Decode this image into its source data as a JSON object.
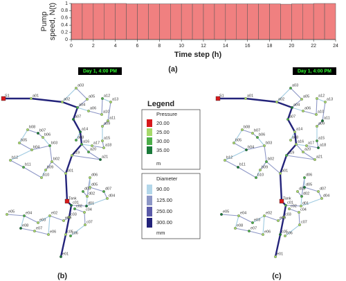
{
  "chart_data": {
    "type": "histogram",
    "ylabel": "Pump speed, N(t)",
    "xlabel": "Time step (h)",
    "caption": "(a)",
    "bins": [
      0,
      1,
      2,
      3,
      4,
      5,
      6,
      7,
      8,
      9,
      10,
      11,
      12,
      13,
      14,
      15,
      16,
      17,
      18,
      19,
      20,
      21,
      22,
      23,
      24
    ],
    "values": [
      1,
      1,
      1,
      1,
      1,
      0.99,
      0.99,
      0.99,
      0.99,
      0.99,
      0.99,
      0.99,
      0.99,
      0.99,
      0.99,
      0.99,
      0.99,
      0.99,
      0.99,
      0.98,
      0.99,
      0.99,
      1,
      1
    ],
    "color": "#f08080",
    "xlim": [
      0,
      24
    ],
    "ylim": [
      0,
      1
    ],
    "xticks": [
      0,
      2,
      4,
      6,
      8,
      10,
      12,
      14,
      16,
      18,
      20,
      22,
      24
    ],
    "yticks": [
      0,
      0.2,
      0.4,
      0.6,
      0.8,
      1
    ]
  },
  "network": {
    "time_label": "Day 1, 4:00 PM",
    "captions": [
      "(b)",
      "(c)"
    ],
    "nodes": [
      "S1",
      "a01",
      "a02",
      "a03",
      "a04",
      "a05",
      "a06",
      "a07",
      "a08",
      "a09",
      "a10",
      "a11",
      "a12",
      "a13",
      "a14",
      "a15",
      "a16",
      "a17",
      "a18",
      "a19",
      "a20",
      "a21",
      "b01",
      "b02",
      "b03",
      "b04",
      "b05",
      "b06",
      "b07",
      "b08",
      "b09",
      "b10",
      "b11",
      "b12",
      "Tank",
      "c01",
      "c02",
      "c03",
      "c04",
      "c05",
      "c06",
      "c07",
      "d01",
      "d02",
      "d03",
      "d04",
      "d05",
      "d06",
      "d07",
      "e01",
      "e02",
      "e03",
      "e04",
      "e05",
      "e06",
      "e07",
      "e08",
      "e09"
    ]
  },
  "legend": {
    "title": "Legend",
    "pressure": {
      "title": "Pressure",
      "items": [
        "20.00",
        "25.00",
        "30.00",
        "35.00"
      ],
      "unit": "m"
    },
    "diameter": {
      "title": "Diameter",
      "items": [
        "90.00",
        "125.00",
        "250.00",
        "300.00"
      ],
      "unit": "mm"
    }
  }
}
